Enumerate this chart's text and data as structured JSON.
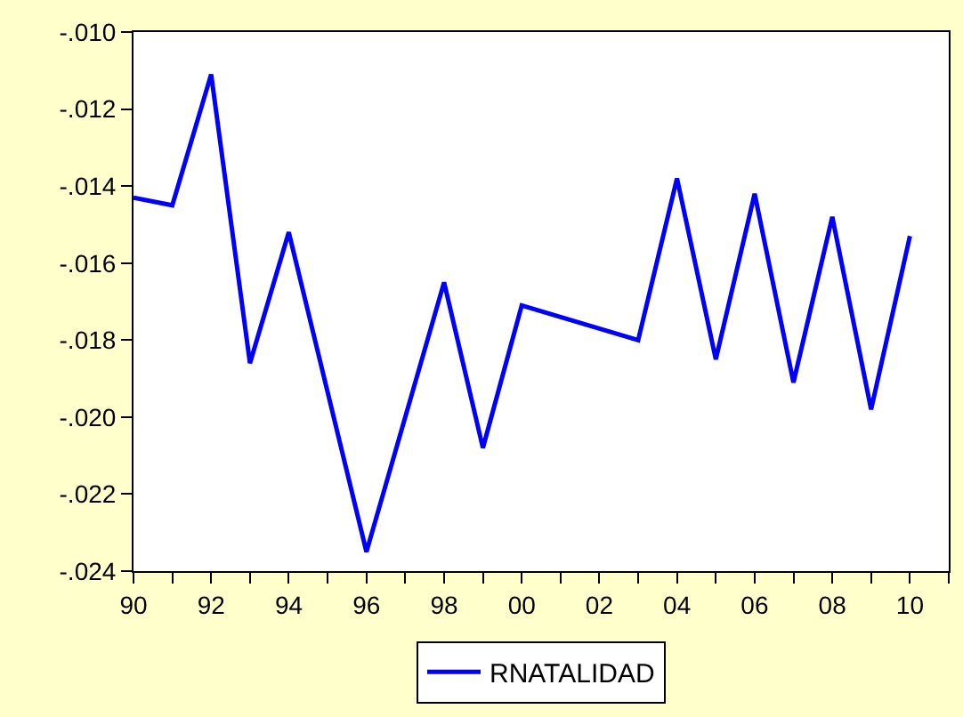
{
  "chart_data": {
    "type": "line",
    "x": [
      1990,
      1991,
      1992,
      1993,
      1994,
      1996,
      1998,
      1999,
      2000,
      2003,
      2004,
      2005,
      2006,
      2007,
      2008,
      2009,
      2010
    ],
    "series": [
      {
        "name": "RNATALIDAD",
        "color": "#0000ff",
        "values": [
          -0.0143,
          -0.0145,
          -0.0111,
          -0.0186,
          -0.0152,
          -0.0235,
          -0.0165,
          -0.0208,
          -0.0171,
          -0.018,
          -0.0138,
          -0.0185,
          -0.0142,
          -0.0191,
          -0.0148,
          -0.0198,
          -0.0153
        ]
      }
    ],
    "xlim": [
      1990,
      2011
    ],
    "xticks": [
      {
        "value": 1990,
        "label": "90"
      },
      {
        "value": 1991,
        "label": null
      },
      {
        "value": 1992,
        "label": "92"
      },
      {
        "value": 1993,
        "label": null
      },
      {
        "value": 1994,
        "label": "94"
      },
      {
        "value": 1995,
        "label": null
      },
      {
        "value": 1996,
        "label": "96"
      },
      {
        "value": 1997,
        "label": null
      },
      {
        "value": 1998,
        "label": "98"
      },
      {
        "value": 1999,
        "label": null
      },
      {
        "value": 2000,
        "label": "00"
      },
      {
        "value": 2001,
        "label": null
      },
      {
        "value": 2002,
        "label": "02"
      },
      {
        "value": 2003,
        "label": null
      },
      {
        "value": 2004,
        "label": "04"
      },
      {
        "value": 2005,
        "label": null
      },
      {
        "value": 2006,
        "label": "06"
      },
      {
        "value": 2007,
        "label": null
      },
      {
        "value": 2008,
        "label": "08"
      },
      {
        "value": 2009,
        "label": null
      },
      {
        "value": 2010,
        "label": "10"
      },
      {
        "value": 2011,
        "label": null
      }
    ],
    "ylim": [
      -0.024,
      -0.01
    ],
    "yticks": [
      {
        "value": -0.024,
        "label": "-.024"
      },
      {
        "value": -0.022,
        "label": "-.022"
      },
      {
        "value": -0.02,
        "label": "-.020"
      },
      {
        "value": -0.018,
        "label": "-.018"
      },
      {
        "value": -0.016,
        "label": "-.016"
      },
      {
        "value": -0.014,
        "label": "-.014"
      },
      {
        "value": -0.012,
        "label": "-.012"
      },
      {
        "value": -0.01,
        "label": "-.010"
      }
    ],
    "legend": "bottom",
    "marker": "none",
    "line_style": "solid"
  }
}
